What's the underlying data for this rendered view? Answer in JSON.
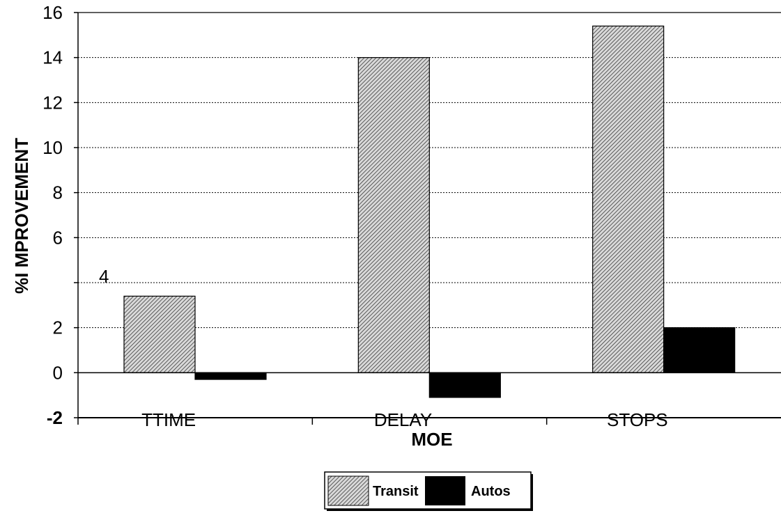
{
  "chart_data": {
    "type": "bar",
    "categories": [
      "TTIME",
      "DELAY",
      "STOPS"
    ],
    "series": [
      {
        "name": "Transit",
        "values": [
          3.4,
          14.0,
          15.4
        ],
        "fill": "hatched"
      },
      {
        "name": "Autos",
        "values": [
          -0.3,
          -1.1,
          2.0
        ],
        "fill": "#000000"
      }
    ],
    "xlabel": "MOE",
    "ylabel": "%I MPROVEMENT",
    "ylim": [
      -2,
      16
    ],
    "yticks": [
      "-2",
      "0",
      "2",
      "4",
      "6",
      "8",
      "10",
      "12",
      "14",
      "16"
    ],
    "grid": true,
    "legend": "bottom-center"
  }
}
